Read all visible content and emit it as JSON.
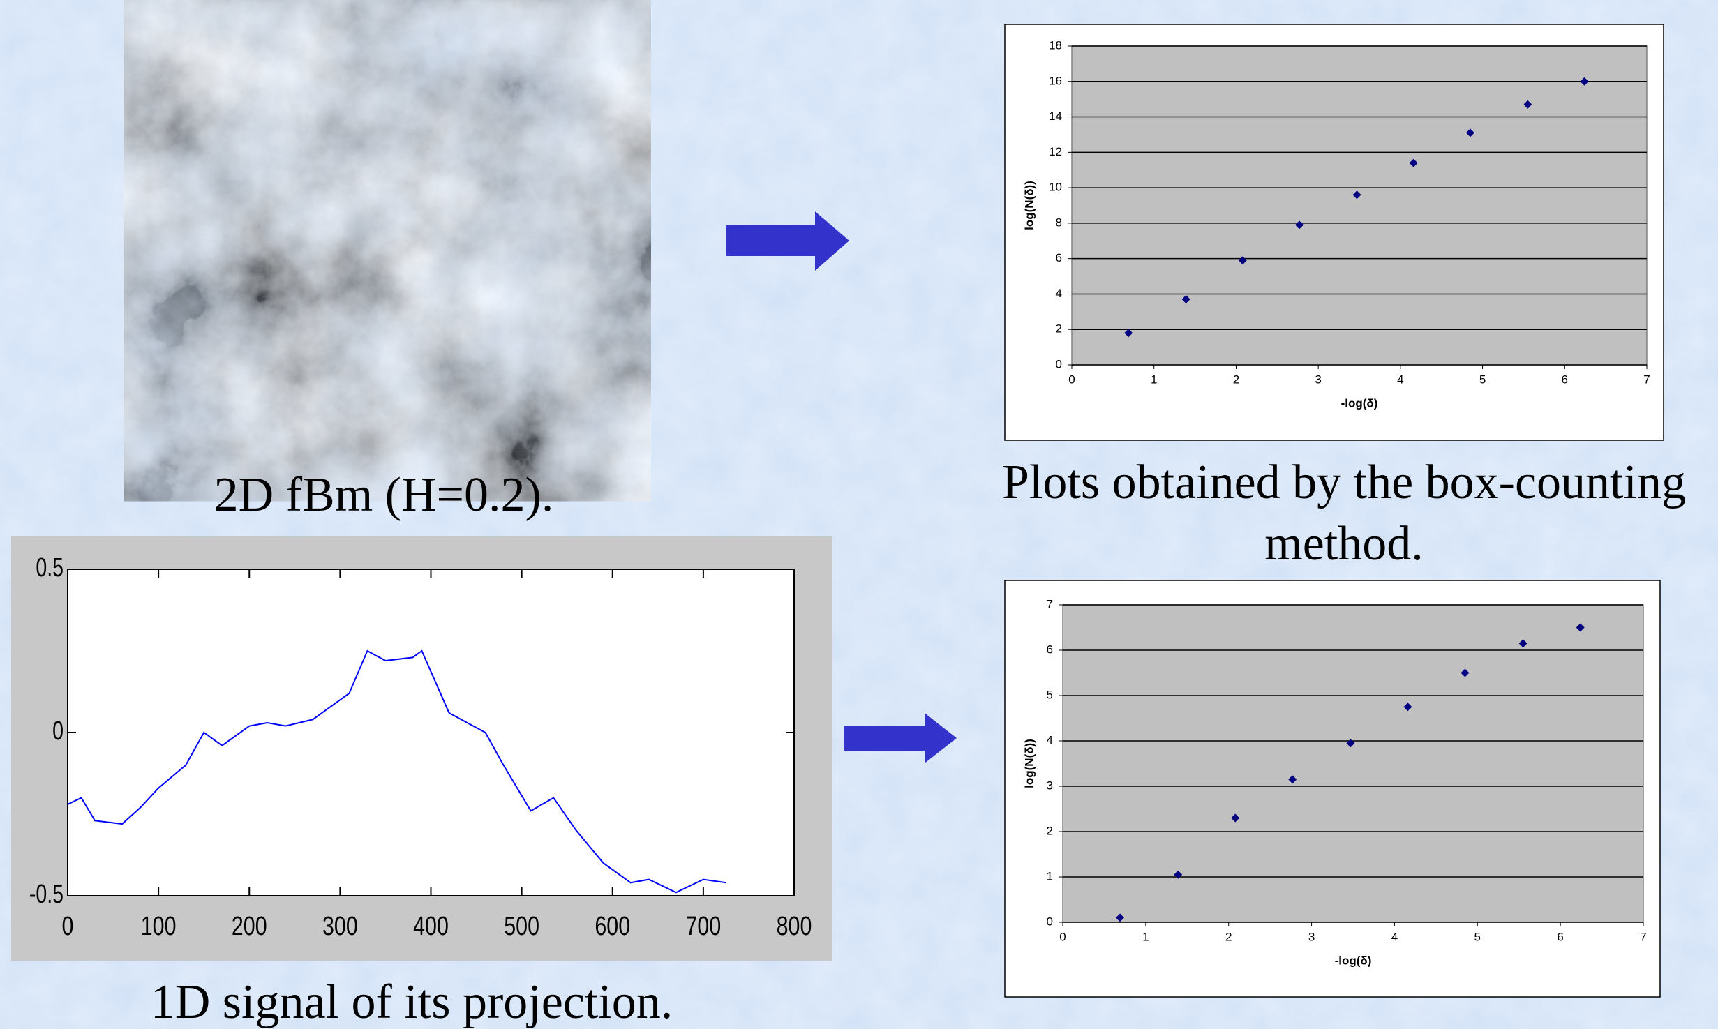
{
  "captions": [
    "2D fBm (H=0.2).",
    "Plots obtained by the box-counting method.",
    "1D signal of its projection."
  ],
  "chart_data": [
    {
      "type": "scatter",
      "xlabel": "-log(δ)",
      "ylabel": "log(N(δ))",
      "color": "#000080",
      "grid": true,
      "x": [
        0.69,
        1.39,
        2.08,
        2.77,
        3.47,
        4.16,
        4.85,
        5.55,
        6.24
      ],
      "values": [
        1.8,
        3.7,
        5.9,
        7.9,
        9.6,
        11.4,
        13.1,
        14.7,
        16.0
      ],
      "xlim": [
        0,
        7
      ],
      "xticks": [
        0,
        1,
        2,
        3,
        4,
        5,
        6,
        7
      ],
      "ylim": [
        0,
        18
      ],
      "yticks": [
        0,
        2,
        4,
        6,
        8,
        10,
        12,
        14,
        16,
        18
      ]
    },
    {
      "type": "scatter",
      "xlabel": "-log(δ)",
      "ylabel": "log(N(δ))",
      "color": "#000080",
      "grid": true,
      "x": [
        0.69,
        1.39,
        2.08,
        2.77,
        3.47,
        4.16,
        4.85,
        5.55,
        6.24
      ],
      "values": [
        0.1,
        1.05,
        2.3,
        3.15,
        3.95,
        4.75,
        5.5,
        6.15,
        6.5
      ],
      "xlim": [
        0,
        7
      ],
      "xticks": [
        0,
        1,
        2,
        3,
        4,
        5,
        6,
        7
      ],
      "ylim": [
        0,
        7
      ],
      "yticks": [
        0,
        1,
        2,
        3,
        4,
        5,
        6,
        7
      ]
    },
    {
      "type": "line",
      "color": "#0000ff",
      "x": [
        0,
        15,
        30,
        60,
        80,
        100,
        130,
        150,
        170,
        200,
        220,
        240,
        270,
        290,
        310,
        330,
        350,
        380,
        390,
        420,
        440,
        460,
        480,
        510,
        535,
        560,
        590,
        620,
        640,
        670,
        700,
        725
      ],
      "values": [
        -0.22,
        -0.2,
        -0.27,
        -0.28,
        -0.23,
        -0.17,
        -0.1,
        0.0,
        -0.04,
        0.02,
        0.03,
        0.02,
        0.04,
        0.08,
        0.12,
        0.25,
        0.22,
        0.23,
        0.25,
        0.06,
        0.03,
        0.0,
        -0.1,
        -0.24,
        -0.2,
        -0.3,
        -0.4,
        -0.46,
        -0.45,
        -0.49,
        -0.45,
        -0.46
      ],
      "xlim": [
        0,
        800
      ],
      "xticks": [
        0,
        100,
        200,
        300,
        400,
        500,
        600,
        700,
        800
      ],
      "ylim": [
        -0.5,
        0.5
      ],
      "yticks": [
        -0.5,
        0,
        0.5
      ]
    }
  ]
}
